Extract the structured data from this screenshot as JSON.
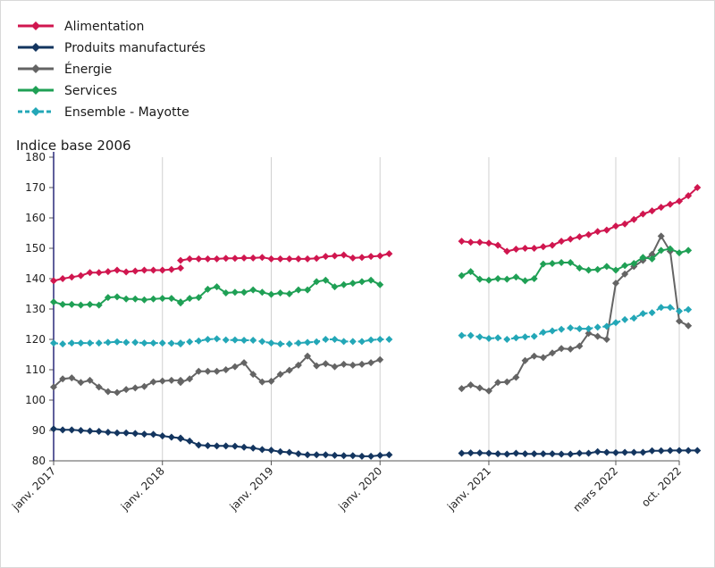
{
  "chart_data": {
    "type": "line",
    "ylabel": "Indice base 2006",
    "ylim": [
      80,
      180
    ],
    "yticks": [
      80,
      90,
      100,
      110,
      120,
      130,
      140,
      150,
      160,
      170,
      180
    ],
    "xlim": [
      "2017-01",
      "2022-10"
    ],
    "x_tick_labels": [
      {
        "date": "2017-01",
        "label": "janv. 2017"
      },
      {
        "date": "2018-01",
        "label": "janv. 2018"
      },
      {
        "date": "2019-01",
        "label": "janv. 2019"
      },
      {
        "date": "2020-01",
        "label": "janv. 2020"
      },
      {
        "date": "2021-01",
        "label": "janv. 2021"
      },
      {
        "date": "2022-03",
        "label": "mars 2022"
      },
      {
        "date": "2022-10",
        "label": "oct. 2022"
      }
    ],
    "grid": "vertical",
    "legend_position": "top-left",
    "series": [
      {
        "name": "Alimentation",
        "color": "#d0164f",
        "style": "solid",
        "segments": [
          {
            "start": "2017-01",
            "values": [
              139.3,
              140.0,
              140.5,
              141.0,
              142.0,
              142.0,
              142.3,
              142.8,
              142.2,
              142.5,
              142.8,
              142.8,
              142.8,
              143.0,
              143.5
            ]
          },
          {
            "start": "2018-03",
            "values": [
              146.0,
              146.5,
              146.5,
              146.5,
              146.5,
              146.7,
              146.7,
              146.8,
              146.8,
              147.0,
              146.5,
              146.5,
              146.5,
              146.5,
              146.5,
              146.7,
              147.3,
              147.5,
              147.8,
              146.8,
              147.0,
              147.3,
              147.5,
              148.2
            ]
          },
          {
            "start": "2020-10",
            "values": [
              152.3,
              152.0,
              152.0,
              151.7,
              151.0,
              149.0,
              149.7,
              150.0,
              150.0,
              150.5,
              151.0,
              152.3,
              153.0,
              153.8,
              154.5,
              155.5,
              156.0,
              157.3,
              158.0,
              159.5,
              161.3,
              162.3,
              163.5,
              164.5,
              165.5,
              167.3,
              170.0
            ]
          }
        ]
      },
      {
        "name": "Produits manufacturés",
        "color": "#13355f",
        "style": "solid",
        "segments": [
          {
            "start": "2017-01",
            "values": [
              90.5,
              90.2,
              90.2,
              90.0,
              89.8,
              89.7,
              89.4,
              89.2,
              89.2,
              89.0,
              88.8,
              88.7,
              88.2,
              87.8,
              87.5
            ]
          },
          {
            "start": "2018-03",
            "values": [
              87.3,
              86.5,
              85.2,
              85.0,
              84.9,
              84.9,
              84.8,
              84.5,
              84.2,
              83.7,
              83.5,
              83.0,
              82.8,
              82.3,
              82.0,
              82.0,
              82.0,
              81.8,
              81.7,
              81.7,
              81.5,
              81.5,
              81.8,
              82.0
            ]
          },
          {
            "start": "2020-10",
            "values": [
              82.5,
              82.6,
              82.6,
              82.5,
              82.3,
              82.2,
              82.5,
              82.3,
              82.3,
              82.3,
              82.3,
              82.2,
              82.2,
              82.5,
              82.5,
              83.0,
              82.8,
              82.7,
              82.8,
              82.8,
              82.8,
              83.3,
              83.3,
              83.4,
              83.4,
              83.4,
              83.4
            ]
          }
        ]
      },
      {
        "name": "Énergie",
        "color": "#646464",
        "style": "solid",
        "segments": [
          {
            "start": "2017-01",
            "values": [
              104.3,
              107.0,
              107.3,
              105.8,
              106.5,
              104.3,
              102.8,
              102.5,
              103.5,
              104.0,
              104.5,
              106.0,
              106.3,
              106.5,
              106.5
            ]
          },
          {
            "start": "2018-03",
            "values": [
              105.8,
              107.0,
              109.5,
              109.5,
              109.5,
              110.0,
              111.0,
              112.3,
              108.5,
              106.0,
              106.2,
              108.5,
              109.8,
              111.5,
              114.5,
              111.3,
              112.0,
              111.0,
              111.8,
              111.5,
              111.8,
              112.3,
              113.3
            ]
          },
          {
            "start": "2020-10",
            "values": [
              103.8,
              105.0,
              104.0,
              103.0,
              105.8,
              106.0,
              107.5,
              113.0,
              114.5,
              114.0,
              115.5,
              117.0,
              116.8,
              117.8,
              122.0,
              121.0,
              120.0,
              138.5,
              141.5,
              144.0,
              146.0,
              148.0,
              154.0,
              149.0,
              126.0,
              124.5
            ]
          }
        ]
      },
      {
        "name": "Services",
        "color": "#1fa055",
        "style": "solid",
        "segments": [
          {
            "start": "2017-01",
            "values": [
              132.3,
              131.5,
              131.5,
              131.3,
              131.5,
              131.3,
              133.8,
              134.0,
              133.3,
              133.3,
              133.0,
              133.3,
              133.5,
              133.5,
              132.3
            ]
          },
          {
            "start": "2018-03",
            "values": [
              132.0,
              133.5,
              133.8,
              136.5,
              137.3,
              135.3,
              135.5,
              135.5,
              136.3,
              135.5,
              134.8,
              135.3,
              135.0,
              136.3,
              136.3,
              139.0,
              139.5,
              137.3,
              138.0,
              138.5,
              139.0,
              139.5,
              138.0
            ]
          },
          {
            "start": "2020-10",
            "values": [
              141.0,
              142.3,
              139.8,
              139.5,
              140.0,
              139.8,
              140.5,
              139.3,
              140.0,
              144.8,
              145.0,
              145.3,
              145.3,
              143.5,
              142.8,
              143.0,
              144.0,
              142.8,
              144.3,
              145.0,
              147.0,
              146.5,
              149.3,
              149.8,
              148.5,
              149.3
            ]
          }
        ]
      },
      {
        "name": "Ensemble - Mayotte",
        "color": "#23a7b7",
        "style": "dashed",
        "segments": [
          {
            "start": "2017-01",
            "values": [
              118.8,
              118.5,
              118.8,
              118.8,
              118.8,
              118.8,
              119.0,
              119.2,
              119.0,
              119.0,
              118.8,
              118.8,
              118.8,
              118.7,
              118.5
            ]
          },
          {
            "start": "2018-03",
            "values": [
              118.8,
              119.2,
              119.5,
              120.0,
              120.2,
              119.8,
              119.8,
              119.7,
              119.7,
              119.3,
              118.8,
              118.5,
              118.5,
              118.8,
              119.0,
              119.2,
              120.0,
              120.0,
              119.3,
              119.3,
              119.3,
              119.8,
              120.0,
              120.0
            ]
          },
          {
            "start": "2020-10",
            "values": [
              121.3,
              121.3,
              120.8,
              120.3,
              120.5,
              120.0,
              120.5,
              120.8,
              121.0,
              122.3,
              122.8,
              123.3,
              123.8,
              123.5,
              123.5,
              124.0,
              124.3,
              125.5,
              126.5,
              127.0,
              128.5,
              128.8,
              130.5,
              130.5,
              129.3,
              129.8
            ]
          }
        ]
      }
    ]
  }
}
